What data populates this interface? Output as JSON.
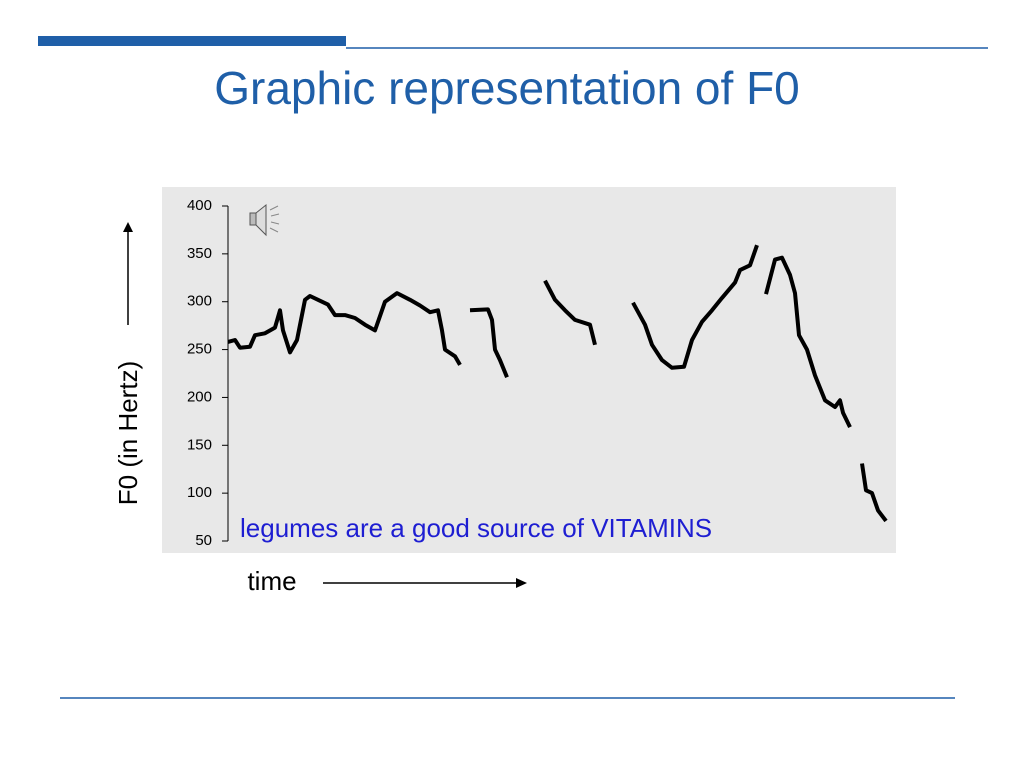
{
  "chart_data": {
    "type": "line",
    "title": "Graphic representation of F0",
    "y_label": "F0 (in Hertz)",
    "x_label": "time",
    "annotation": "legumes are a good source of VITAMINS",
    "xlim": [
      0,
      66
    ],
    "ylim": [
      50,
      400
    ],
    "yticks": [
      50,
      100,
      150,
      200,
      250,
      300,
      350,
      400
    ],
    "series": [
      {
        "color": "#000000",
        "x": [
          0,
          0.7,
          1.2,
          2.2,
          2.7,
          3.7,
          4.7,
          5.2,
          5.5,
          6.2,
          6.9,
          7.7,
          8.2,
          9.0,
          10.0,
          10.7,
          11.7,
          12.7,
          13.7,
          14.7,
          15.7,
          16.9,
          18.2,
          19.2,
          20.2,
          21.0,
          21.4,
          21.7,
          22.7,
          23.2,
          23.7,
          24.2,
          26.0,
          26.4,
          26.7,
          27.2,
          27.9,
          30,
          31.7,
          32.7,
          33.7,
          34.7,
          36.2,
          36.7,
          38.5,
          40.5,
          41.7,
          42.4,
          43.4,
          44.4,
          45.6,
          46.4,
          47.4,
          48.4,
          49.4,
          50.7,
          51.2,
          52.2,
          52.9,
          53.3,
          53.8,
          54.7,
          55.4,
          56.2,
          56.7,
          57.1,
          57.9,
          58.7,
          59.7,
          60.7,
          61.2,
          61.5,
          62.2,
          62.8,
          63.4,
          63.8,
          64.4,
          65.0,
          65.8
        ],
        "values": [
          258,
          260,
          252,
          253,
          265,
          267,
          273,
          291,
          270,
          247,
          260,
          302,
          306,
          302,
          297,
          286,
          286,
          283,
          276,
          270,
          300,
          309,
          302,
          296,
          289,
          291,
          270,
          250,
          243,
          234,
          null,
          291,
          292,
          281,
          250,
          239,
          221,
          null,
          322,
          302,
          291,
          281,
          276,
          255,
          null,
          299,
          276,
          255,
          239,
          231,
          232,
          260,
          279,
          291,
          304,
          320,
          333,
          338,
          359,
          null,
          308,
          344,
          346,
          328,
          309,
          265,
          250,
          223,
          197,
          190,
          197,
          184,
          169,
          null,
          131,
          103,
          100,
          82,
          71
        ]
      }
    ]
  }
}
